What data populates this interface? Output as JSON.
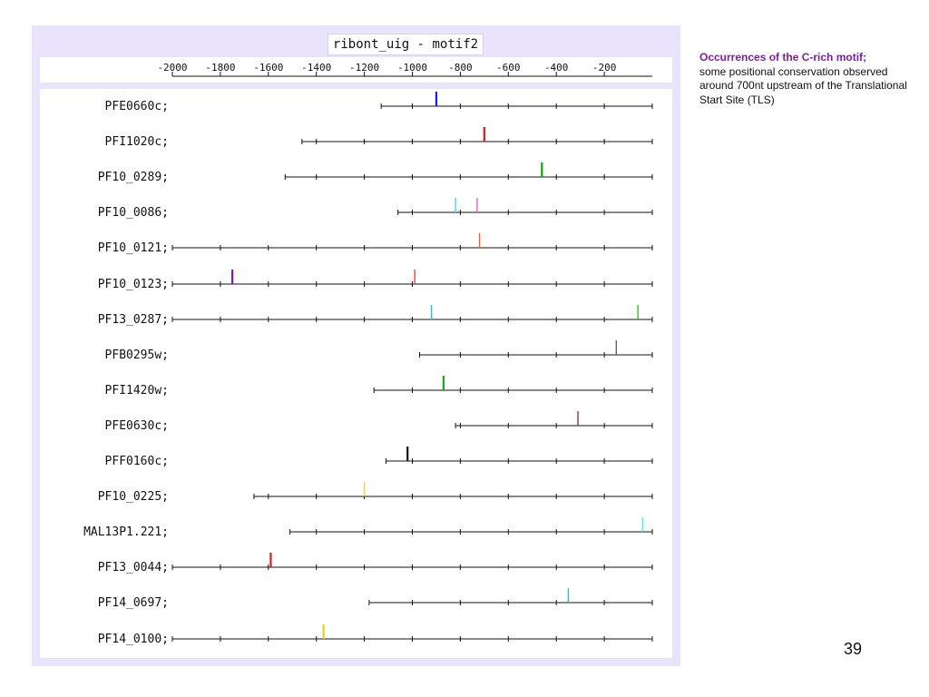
{
  "header": {
    "title": "ribont_uig - motif2"
  },
  "axis": {
    "ticks": [
      {
        "value": -2000,
        "label": "-2000"
      },
      {
        "value": -1800,
        "label": "-1800"
      },
      {
        "value": -1600,
        "label": "-1600"
      },
      {
        "value": -1400,
        "label": "-1400"
      },
      {
        "value": -1200,
        "label": "-1200"
      },
      {
        "value": -1000,
        "label": "-1000"
      },
      {
        "value": -800,
        "label": "-800"
      },
      {
        "value": -600,
        "label": "-600"
      },
      {
        "value": -400,
        "label": "-400"
      },
      {
        "value": -200,
        "label": "-200"
      }
    ],
    "min": -2000,
    "max": 0
  },
  "rows": [
    {
      "gene": "PFE0660c;",
      "start": -1130,
      "motifs": [
        {
          "pos": -900,
          "color": "#1a1aff",
          "tall": true
        }
      ]
    },
    {
      "gene": "PFI1020c;",
      "start": -1460,
      "motifs": [
        {
          "pos": -700,
          "color": "#e01818",
          "tall": true
        }
      ]
    },
    {
      "gene": "PF10_0289;",
      "start": -1530,
      "motifs": [
        {
          "pos": -460,
          "color": "#10a010",
          "tall": true
        }
      ]
    },
    {
      "gene": "PF10_0086;",
      "start": -1060,
      "motifs": [
        {
          "pos": -820,
          "color": "#40d8e8",
          "tall": false
        },
        {
          "pos": -730,
          "color": "#e060c0",
          "tall": false
        }
      ]
    },
    {
      "gene": "PF10_0121;",
      "start": -2000,
      "motifs": [
        {
          "pos": -720,
          "color": "#f06010",
          "tall": false
        }
      ]
    },
    {
      "gene": "PF10_0123;",
      "start": -2000,
      "motifs": [
        {
          "pos": -1750,
          "color": "#8a10c0",
          "tall": true
        },
        {
          "pos": -990,
          "color": "#f04040",
          "tall": false
        }
      ]
    },
    {
      "gene": "PF13_0287;",
      "start": -2000,
      "motifs": [
        {
          "pos": -920,
          "color": "#30c0c0",
          "tall": false
        },
        {
          "pos": -60,
          "color": "#30c030",
          "tall": false
        }
      ]
    },
    {
      "gene": "PFB0295w;",
      "start": -970,
      "motifs": [
        {
          "pos": -150,
          "color": "#606060",
          "tall": false
        }
      ]
    },
    {
      "gene": "PFI1420w;",
      "start": -1160,
      "motifs": [
        {
          "pos": -870,
          "color": "#18a818",
          "tall": true
        }
      ]
    },
    {
      "gene": "PFE0630c;",
      "start": -820,
      "motifs": [
        {
          "pos": -310,
          "color": "#8a3060",
          "tall": false
        }
      ]
    },
    {
      "gene": "PFF0160c;",
      "start": -1110,
      "motifs": [
        {
          "pos": -1020,
          "color": "#111111",
          "tall": true
        }
      ]
    },
    {
      "gene": "PF10_0225;",
      "start": -1660,
      "motifs": [
        {
          "pos": -1200,
          "color": "#f0d040",
          "tall": false
        }
      ]
    },
    {
      "gene": "MAL13P1.221;",
      "start": -1510,
      "motifs": [
        {
          "pos": -40,
          "color": "#40f0f0",
          "tall": false
        }
      ]
    },
    {
      "gene": "PF13_0044;",
      "start": -2000,
      "motifs": [
        {
          "pos": -1590,
          "color": "#e01818",
          "tall": true
        }
      ]
    },
    {
      "gene": "PF14_0697;",
      "start": -1180,
      "motifs": [
        {
          "pos": -350,
          "color": "#30b8d8",
          "tall": false
        }
      ]
    },
    {
      "gene": "PF14_0100;",
      "start": -2000,
      "motifs": [
        {
          "pos": -1370,
          "color": "#e8d020",
          "tall": true
        }
      ]
    }
  ],
  "notes": {
    "heading": "Occurrences of the C-rich motif;",
    "body": "some positional conservation observed around 700nt upstream of the Translational Start Site (TLS)"
  },
  "page_number": "39"
}
